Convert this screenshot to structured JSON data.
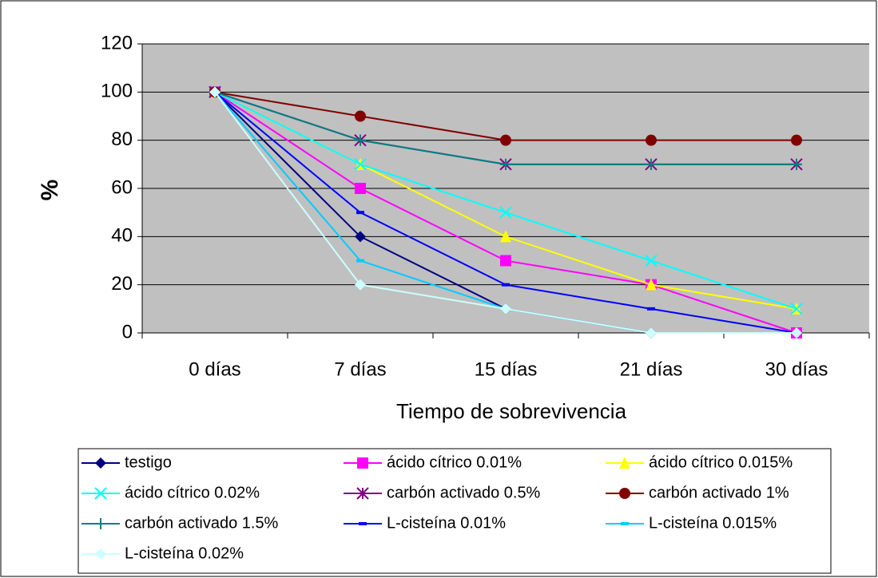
{
  "chart_data": {
    "type": "line",
    "x_label": "Tiempo de sobrevivencia",
    "y_label": "%",
    "categories": [
      "0 días",
      "7 días",
      "15 días",
      "21 días",
      "30 días"
    ],
    "ylim": [
      0,
      120
    ],
    "yticks": [
      0,
      20,
      40,
      60,
      80,
      100,
      120
    ],
    "grid": true,
    "series": [
      {
        "name": "testigo",
        "color": "#000080",
        "marker": "diamond",
        "values": [
          100,
          40,
          10,
          0,
          0
        ]
      },
      {
        "name": "ácido cítrico 0.01%",
        "color": "#ff00ff",
        "marker": "square",
        "values": [
          100,
          60,
          30,
          20,
          0
        ]
      },
      {
        "name": "ácido cítrico 0.015%",
        "color": "#ffff00",
        "marker": "triangle",
        "values": [
          100,
          70,
          40,
          20,
          10
        ]
      },
      {
        "name": "ácido cítrico 0.02%",
        "color": "#00ffff",
        "marker": "x",
        "values": [
          100,
          70,
          50,
          30,
          10
        ]
      },
      {
        "name": "carbón activado 0.5%",
        "color": "#800080",
        "marker": "star",
        "values": [
          100,
          80,
          70,
          70,
          70
        ]
      },
      {
        "name": "carbón activado 1%",
        "color": "#800000",
        "marker": "circle",
        "values": [
          100,
          90,
          80,
          80,
          80
        ]
      },
      {
        "name": "carbón activado 1.5%",
        "color": "#008080",
        "marker": "plus",
        "values": [
          100,
          80,
          70,
          70,
          70
        ]
      },
      {
        "name": "L-cisteína 0.01%",
        "color": "#0000ff",
        "marker": "dash",
        "values": [
          100,
          50,
          20,
          10,
          0
        ]
      },
      {
        "name": "L-cisteína 0.015%",
        "color": "#00ccff",
        "marker": "dash",
        "values": [
          100,
          30,
          10,
          0,
          0
        ]
      },
      {
        "name": "L-cisteína 0.02%",
        "color": "#ccffff",
        "marker": "diamond",
        "values": [
          100,
          20,
          10,
          0,
          0
        ]
      }
    ]
  }
}
